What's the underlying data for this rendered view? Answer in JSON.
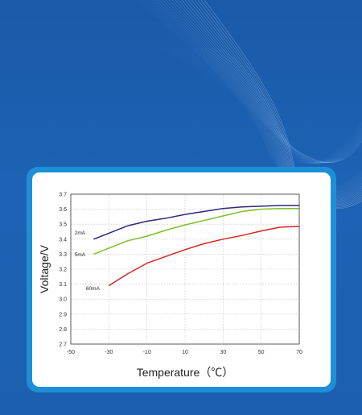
{
  "chart_data": {
    "type": "line",
    "xlabel": "Temperature（℃）",
    "ylabel": "Voltage/V",
    "xlim": [
      -50,
      70
    ],
    "ylim": [
      2.7,
      3.7
    ],
    "x_ticks": [
      "-50",
      "-30",
      "-10",
      "10",
      "30",
      "50",
      "70"
    ],
    "y_ticks": [
      "2.7",
      "2.8",
      "2.9",
      "3.0",
      "3.1",
      "3.2",
      "3.3",
      "3.4",
      "3.5",
      "3.6",
      "3.7"
    ],
    "grid": true,
    "series": [
      {
        "name": "2mA",
        "color": "#2b2a7a",
        "x": [
          -38,
          -30,
          -20,
          -10,
          0,
          10,
          20,
          30,
          40,
          50,
          60,
          70
        ],
        "y": [
          3.4,
          3.44,
          3.49,
          3.52,
          3.54,
          3.565,
          3.585,
          3.605,
          3.615,
          3.62,
          3.625,
          3.625
        ]
      },
      {
        "name": "5mA",
        "color": "#7ec12a",
        "x": [
          -38,
          -30,
          -20,
          -10,
          0,
          10,
          20,
          30,
          40,
          50,
          60,
          70
        ],
        "y": [
          3.3,
          3.34,
          3.39,
          3.42,
          3.46,
          3.495,
          3.525,
          3.555,
          3.585,
          3.6,
          3.605,
          3.605
        ]
      },
      {
        "name": "60mA",
        "color": "#d8251f",
        "x": [
          -30,
          -20,
          -10,
          0,
          10,
          20,
          30,
          40,
          50,
          60,
          70
        ],
        "y": [
          3.09,
          3.17,
          3.24,
          3.285,
          3.33,
          3.37,
          3.4,
          3.425,
          3.455,
          3.48,
          3.485
        ]
      }
    ]
  }
}
